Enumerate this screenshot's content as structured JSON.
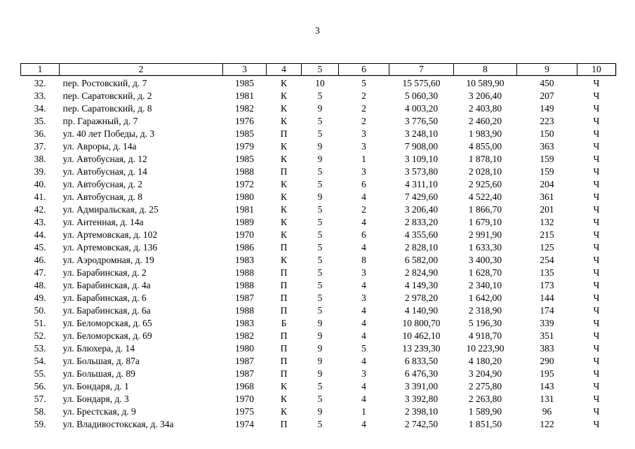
{
  "page": {
    "number": "3"
  },
  "table": {
    "columns": [
      "1",
      "2",
      "3",
      "4",
      "5",
      "6",
      "7",
      "8",
      "9",
      "10"
    ],
    "rows": [
      [
        "32.",
        "пер. Ростовский, д. 7",
        "1985",
        "К",
        "10",
        "5",
        "15 575,60",
        "10 589,90",
        "450",
        "Ч"
      ],
      [
        "33.",
        "пер. Саратовский, д. 2",
        "1981",
        "К",
        "5",
        "2",
        "5 060,30",
        "3 206,40",
        "207",
        "Ч"
      ],
      [
        "34.",
        "пер. Саратовский, д. 8",
        "1982",
        "К",
        "9",
        "2",
        "4 003,20",
        "2 403,80",
        "149",
        "Ч"
      ],
      [
        "35.",
        "пр. Гаражный, д. 7",
        "1976",
        "К",
        "5",
        "2",
        "3 776,50",
        "2 460,20",
        "223",
        "Ч"
      ],
      [
        "36.",
        "ул. 40 лет Победы, д. 3",
        "1985",
        "П",
        "5",
        "3",
        "3 248,10",
        "1 983,90",
        "150",
        "Ч"
      ],
      [
        "37.",
        "ул. Авроры, д. 14а",
        "1979",
        "К",
        "9",
        "3",
        "7 908,00",
        "4 855,00",
        "363",
        "Ч"
      ],
      [
        "38.",
        "ул. Автобусная, д. 12",
        "1985",
        "К",
        "9",
        "1",
        "3 109,10",
        "1 878,10",
        "159",
        "Ч"
      ],
      [
        "39.",
        "ул. Автобусная, д. 14",
        "1988",
        "П",
        "5",
        "3",
        "3 573,80",
        "2 028,10",
        "159",
        "Ч"
      ],
      [
        "40.",
        "ул. Автобусная, д. 2",
        "1972",
        "К",
        "5",
        "6",
        "4 311,10",
        "2 925,60",
        "204",
        "Ч"
      ],
      [
        "41.",
        "ул. Автобусная, д. 8",
        "1980",
        "К",
        "9",
        "4",
        "7 429,60",
        "4 522,40",
        "361",
        "Ч"
      ],
      [
        "42.",
        "ул. Адмиральская, д. 25",
        "1981",
        "К",
        "5",
        "2",
        "3 206,40",
        "1 866,70",
        "201",
        "Ч"
      ],
      [
        "43.",
        "ул. Антенная, д. 14а",
        "1989",
        "К",
        "5",
        "4",
        "2 833,20",
        "1 679,10",
        "132",
        "Ч"
      ],
      [
        "44.",
        "ул. Артемовская, д. 102",
        "1970",
        "К",
        "5",
        "6",
        "4 355,60",
        "2 991,90",
        "215",
        "Ч"
      ],
      [
        "45.",
        "ул. Артемовская, д. 136",
        "1986",
        "П",
        "5",
        "4",
        "2 828,10",
        "1 633,30",
        "125",
        "Ч"
      ],
      [
        "46.",
        "ул. Аэродромная, д. 19",
        "1983",
        "К",
        "5",
        "8",
        "6 582,00",
        "3 400,30",
        "254",
        "Ч"
      ],
      [
        "47.",
        "ул. Барабинская, д. 2",
        "1988",
        "П",
        "5",
        "3",
        "2 824,90",
        "1 628,70",
        "135",
        "Ч"
      ],
      [
        "48.",
        "ул. Барабинская, д. 4а",
        "1988",
        "П",
        "5",
        "4",
        "4 149,30",
        "2 340,10",
        "173",
        "Ч"
      ],
      [
        "49.",
        "ул. Барабинская, д. 6",
        "1987",
        "П",
        "5",
        "3",
        "2 978,20",
        "1 642,00",
        "144",
        "Ч"
      ],
      [
        "50.",
        "ул. Барабинская, д. 6а",
        "1988",
        "П",
        "5",
        "4",
        "4 140,90",
        "2 318,90",
        "174",
        "Ч"
      ],
      [
        "51.",
        "ул. Беломорская, д. 65",
        "1983",
        "Б",
        "9",
        "4",
        "10 800,70",
        "5 196,30",
        "339",
        "Ч"
      ],
      [
        "52.",
        "ул. Беломорская, д. 69",
        "1982",
        "П",
        "9",
        "4",
        "10 462,10",
        "4 918,70",
        "351",
        "Ч"
      ],
      [
        "53.",
        "ул. Блюхера, д. 14",
        "1980",
        "П",
        "9",
        "5",
        "13 239,30",
        "10 223,90",
        "383",
        "Ч"
      ],
      [
        "54.",
        "ул. Большая, д. 87а",
        "1987",
        "П",
        "9",
        "4",
        "6 833,50",
        "4 180,20",
        "290",
        "Ч"
      ],
      [
        "55.",
        "ул. Большая, д. 89",
        "1987",
        "П",
        "9",
        "3",
        "6 476,30",
        "3 204,90",
        "195",
        "Ч"
      ],
      [
        "56.",
        "ул. Бондаря, д. 1",
        "1968",
        "К",
        "5",
        "4",
        "3 391,00",
        "2 275,80",
        "143",
        "Ч"
      ],
      [
        "57.",
        "ул. Бондаря, д. 3",
        "1970",
        "К",
        "5",
        "4",
        "3 392,80",
        "2 263,80",
        "131",
        "Ч"
      ],
      [
        "58.",
        "ул. Брестская, д. 9",
        "1975",
        "К",
        "9",
        "1",
        "2 398,10",
        "1 589,90",
        "96",
        "Ч"
      ],
      [
        "59.",
        "ул. Владивостокская, д. 34а",
        "1974",
        "П",
        "5",
        "4",
        "2 742,50",
        "1 851,50",
        "122",
        "Ч"
      ]
    ]
  }
}
